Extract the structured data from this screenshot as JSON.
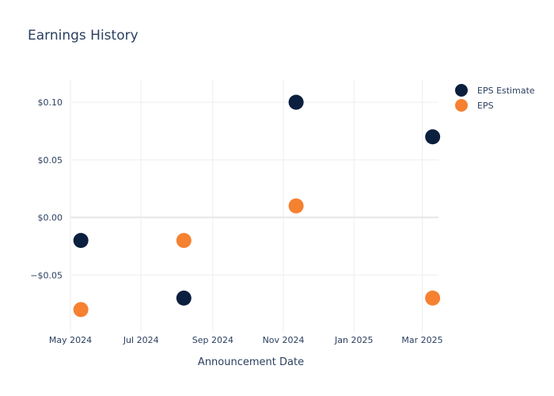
{
  "chart_data": {
    "type": "scatter",
    "title": "Earnings History",
    "xlabel": "Announcement Date",
    "ylabel": "",
    "x_tick_labels": [
      "May 2024",
      "Jul 2024",
      "Sep 2024",
      "Nov 2024",
      "Jan 2025",
      "Mar 2025"
    ],
    "x_tick_dates": [
      "2024-05-01",
      "2024-07-01",
      "2024-09-01",
      "2024-11-01",
      "2025-01-01",
      "2025-03-01"
    ],
    "xlim": [
      "2024-05-01",
      "2025-03-15"
    ],
    "y_tick_labels": [
      "$0.10",
      "$0.05",
      "$0.00",
      "−$0.05"
    ],
    "y_tick_values": [
      0.1,
      0.05,
      0.0,
      -0.05
    ],
    "ylim": [
      -0.1,
      0.12
    ],
    "grid": true,
    "legend_position": "top-right",
    "series": [
      {
        "name": "EPS Estimate",
        "color": "#0b1f3f",
        "points": [
          {
            "x": "2024-05-10",
            "y": -0.02
          },
          {
            "x": "2024-08-07",
            "y": -0.07
          },
          {
            "x": "2024-11-12",
            "y": 0.1
          },
          {
            "x": "2025-03-10",
            "y": 0.07
          }
        ]
      },
      {
        "name": "EPS",
        "color": "#f58131",
        "points": [
          {
            "x": "2024-05-10",
            "y": -0.08
          },
          {
            "x": "2024-08-07",
            "y": -0.02
          },
          {
            "x": "2024-11-12",
            "y": 0.01
          },
          {
            "x": "2025-03-10",
            "y": -0.07
          }
        ]
      }
    ]
  }
}
